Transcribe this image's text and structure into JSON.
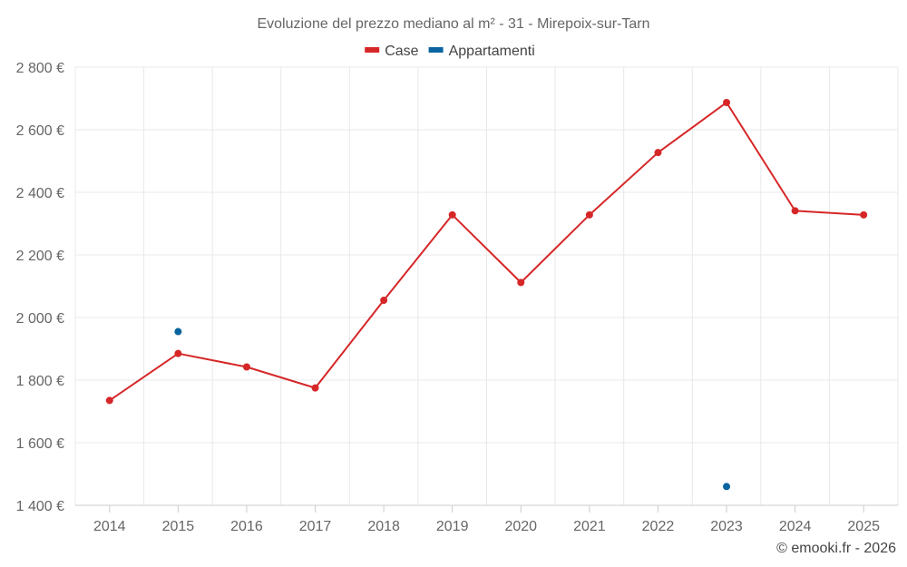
{
  "chart_data": {
    "type": "line",
    "title": "Evoluzione del prezzo mediano al m² - 31 - Mirepoix-sur-Tarn",
    "categories": [
      "2014",
      "2015",
      "2016",
      "2017",
      "2018",
      "2019",
      "2020",
      "2021",
      "2022",
      "2023",
      "2024",
      "2025"
    ],
    "ylim": [
      1400,
      2800
    ],
    "yticks": [
      1400,
      1600,
      1800,
      2000,
      2200,
      2400,
      2600,
      2800
    ],
    "ytick_labels": [
      "1 400 €",
      "1 600 €",
      "1 800 €",
      "2 000 €",
      "2 200 €",
      "2 400 €",
      "2 600 €",
      "2 800 €"
    ],
    "grid": true,
    "legend_position": "top-center",
    "series": [
      {
        "name": "Case",
        "color": "#d62728",
        "values": [
          1735,
          1885,
          1842,
          1775,
          2055,
          2328,
          2112,
          2328,
          2527,
          2687,
          2341,
          2328
        ]
      },
      {
        "name": "Appartamenti",
        "color": "#0a64a0",
        "values": [
          null,
          1955,
          null,
          null,
          null,
          null,
          null,
          null,
          null,
          1460,
          null,
          null
        ]
      }
    ]
  },
  "credit": "© emooki.fr - 2026"
}
